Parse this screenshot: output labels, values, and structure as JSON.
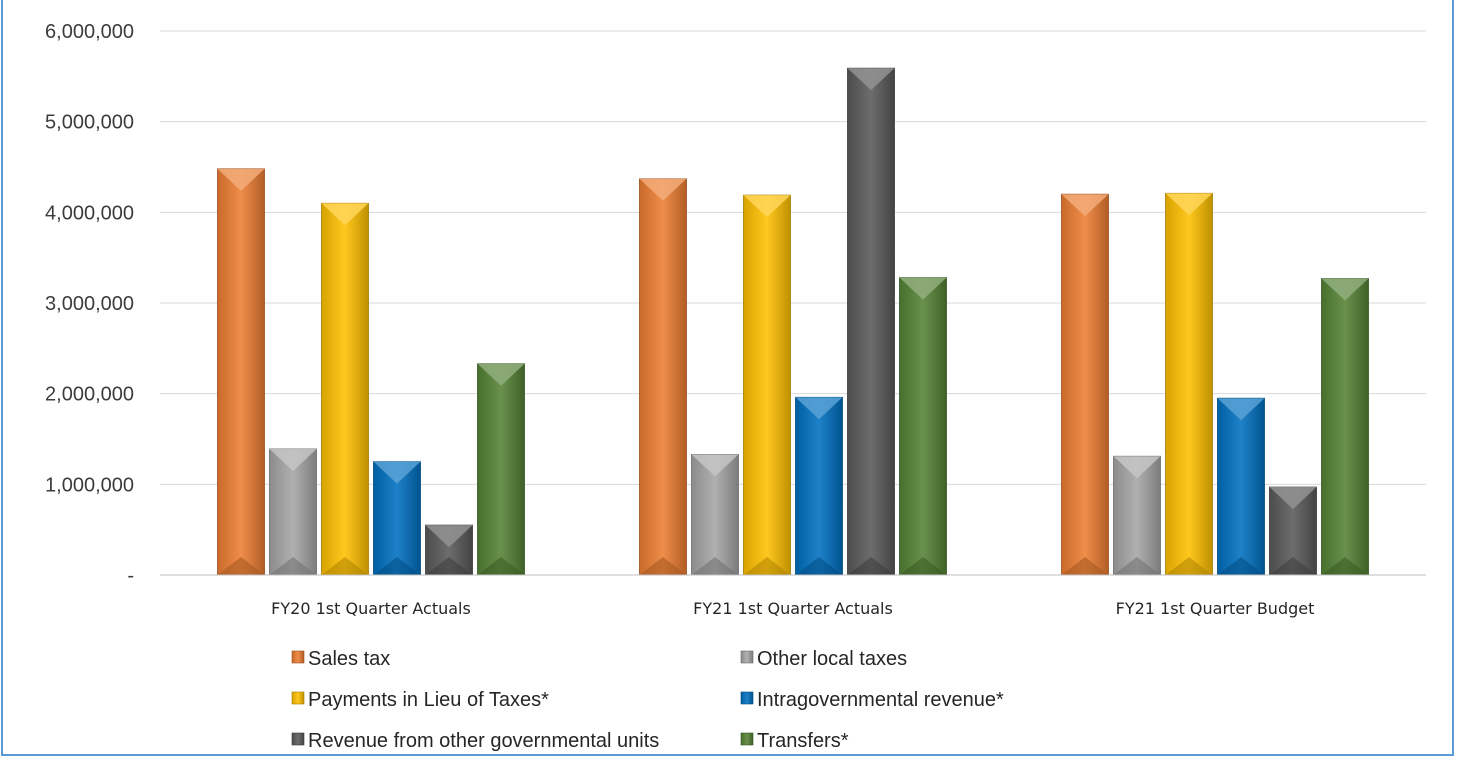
{
  "chart_data": {
    "type": "bar",
    "title": "",
    "xlabel": "",
    "ylabel": "",
    "ylim": [
      0,
      6000000
    ],
    "yticks": [
      0,
      1000000,
      2000000,
      3000000,
      4000000,
      5000000,
      6000000
    ],
    "ytick_labels": [
      "-",
      "1,000,000",
      "2,000,000",
      "3,000,000",
      "4,000,000",
      "5,000,000",
      "6,000,000"
    ],
    "grid": true,
    "legend_position": "bottom",
    "categories": [
      "FY20 1st Quarter Actuals",
      "FY21 1st Quarter Actuals",
      "FY21 1st Quarter Budget"
    ],
    "series": [
      {
        "name": "Sales tax",
        "color": "#ed7d31",
        "values": [
          4480000,
          4370000,
          4200000
        ]
      },
      {
        "name": "Other local taxes",
        "color": "#a5a5a5",
        "values": [
          1390000,
          1330000,
          1310000
        ]
      },
      {
        "name": "Payments in Lieu of Taxes*",
        "color": "#ffc000",
        "values": [
          4100000,
          4190000,
          4210000
        ]
      },
      {
        "name": "Intragovernmental revenue*",
        "color": "#0070c0",
        "values": [
          1250000,
          1960000,
          1950000
        ]
      },
      {
        "name": "Revenue from other governmental units",
        "color": "#595959",
        "values": [
          550000,
          5590000,
          970000
        ]
      },
      {
        "name": "Transfers*",
        "color": "#548235",
        "values": [
          2330000,
          3280000,
          3270000
        ]
      }
    ]
  }
}
